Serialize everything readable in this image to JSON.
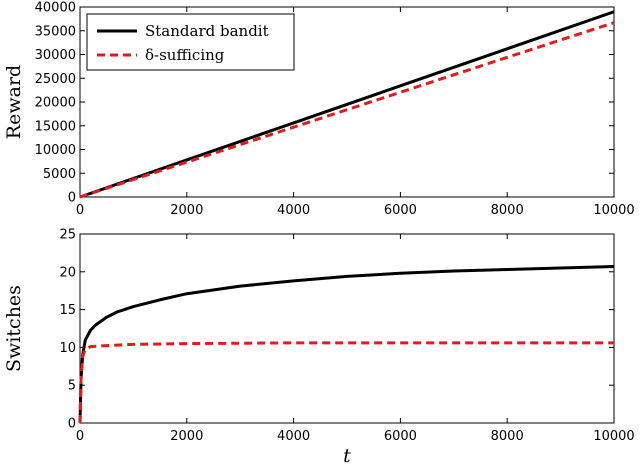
{
  "chart_data": [
    {
      "type": "line",
      "title": "",
      "xlabel": "",
      "ylabel": "Reward",
      "xlim": [
        0,
        10000
      ],
      "ylim": [
        0,
        40000
      ],
      "xticks": [
        0,
        2000,
        4000,
        6000,
        8000,
        10000
      ],
      "yticks": [
        0,
        5000,
        10000,
        15000,
        20000,
        25000,
        30000,
        35000,
        40000
      ],
      "grid": false,
      "legend": "top-left",
      "series": [
        {
          "name": "Standard bandit",
          "color": "#000000",
          "style": "solid",
          "x": [
            0,
            2000,
            4000,
            6000,
            8000,
            10000
          ],
          "y": [
            0,
            7800,
            15600,
            23400,
            31200,
            39000
          ]
        },
        {
          "name": "δ-sufficing",
          "color": "#e31a1c",
          "style": "dashed",
          "x": [
            0,
            2000,
            4000,
            6000,
            8000,
            10000
          ],
          "y": [
            0,
            7350,
            14700,
            22050,
            29400,
            36700
          ]
        }
      ]
    },
    {
      "type": "line",
      "title": "",
      "xlabel": "t",
      "ylabel": "Switches",
      "xlim": [
        0,
        10000
      ],
      "ylim": [
        0,
        25
      ],
      "xticks": [
        0,
        2000,
        4000,
        6000,
        8000,
        10000
      ],
      "yticks": [
        0,
        5,
        10,
        15,
        20,
        25
      ],
      "grid": false,
      "series": [
        {
          "name": "Standard bandit",
          "color": "#000000",
          "style": "solid",
          "x": [
            0,
            20,
            50,
            100,
            200,
            300,
            500,
            700,
            1000,
            1500,
            2000,
            3000,
            4000,
            5000,
            6000,
            7000,
            8000,
            9000,
            10000
          ],
          "y": [
            0,
            6,
            9,
            11,
            12.3,
            13,
            14,
            14.7,
            15.4,
            16.3,
            17.1,
            18.1,
            18.8,
            19.4,
            19.8,
            20.1,
            20.3,
            20.5,
            20.7
          ]
        },
        {
          "name": "δ-sufficing",
          "color": "#e31a1c",
          "style": "dashed",
          "x": [
            0,
            20,
            50,
            100,
            200,
            400,
            700,
            1000,
            2000,
            4000,
            6000,
            8000,
            10000
          ],
          "y": [
            0,
            6,
            8.8,
            9.8,
            10.1,
            10.2,
            10.3,
            10.4,
            10.5,
            10.6,
            10.6,
            10.6,
            10.6
          ]
        }
      ]
    }
  ]
}
